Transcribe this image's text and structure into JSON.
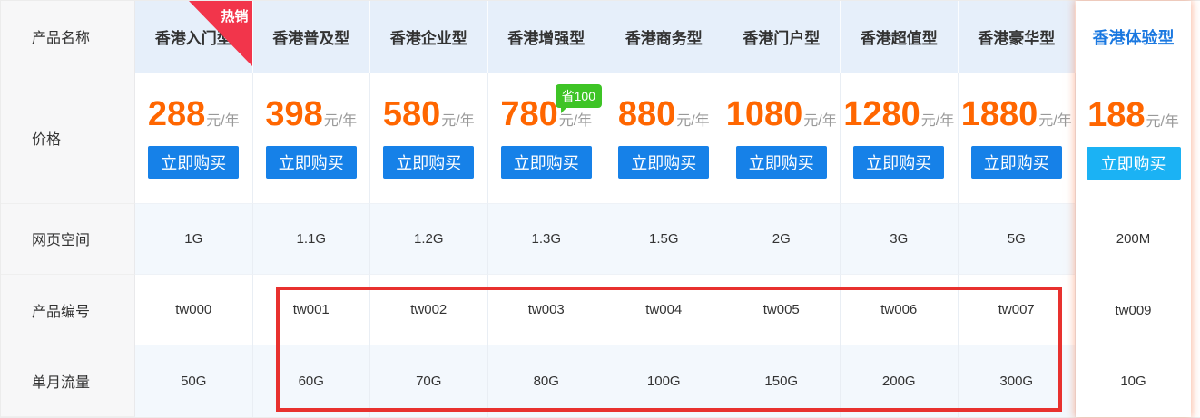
{
  "colors": {
    "price-orange": "#ff6600",
    "buy-blue": "#1681e8",
    "featured-buy-cyan": "#1bb2f4",
    "ribbon-red": "#f2354b",
    "save-green": "#3ec426",
    "highlight-red": "#e8312e",
    "featured-name-blue": "#1a78e0"
  },
  "row_labels": {
    "product_name": "产品名称",
    "price": "价格",
    "web_space": "网页空间",
    "product_code": "产品编号",
    "monthly_traffic": "单月流量"
  },
  "hot_ribbon_label": "热销",
  "price_unit": "元/年",
  "buy_button_label": "立即购买",
  "plans": [
    {
      "name": "香港入门型",
      "price": "288",
      "web_space": "1G",
      "code": "tw000",
      "traffic": "50G",
      "hot": true
    },
    {
      "name": "香港普及型",
      "price": "398",
      "web_space": "1.1G",
      "code": "tw001",
      "traffic": "60G"
    },
    {
      "name": "香港企业型",
      "price": "580",
      "web_space": "1.2G",
      "code": "tw002",
      "traffic": "70G"
    },
    {
      "name": "香港增强型",
      "price": "780",
      "web_space": "1.3G",
      "code": "tw003",
      "traffic": "80G",
      "save_badge": "省100"
    },
    {
      "name": "香港商务型",
      "price": "880",
      "web_space": "1.5G",
      "code": "tw004",
      "traffic": "100G"
    },
    {
      "name": "香港门户型",
      "price": "1080",
      "web_space": "2G",
      "code": "tw005",
      "traffic": "150G"
    },
    {
      "name": "香港超值型",
      "price": "1280",
      "web_space": "3G",
      "code": "tw006",
      "traffic": "200G"
    },
    {
      "name": "香港豪华型",
      "price": "1880",
      "web_space": "5G",
      "code": "tw007",
      "traffic": "300G"
    }
  ],
  "featured_plan": {
    "name": "香港体验型",
    "price": "188",
    "web_space": "200M",
    "code": "tw009",
    "traffic": "10G"
  }
}
